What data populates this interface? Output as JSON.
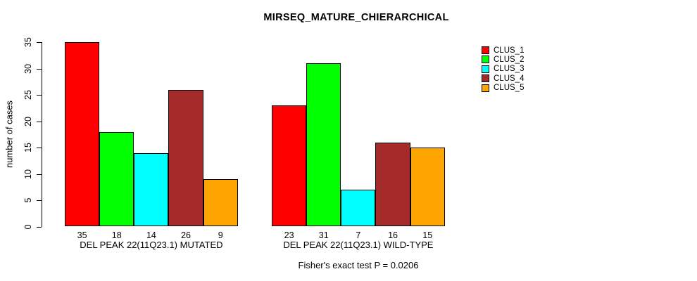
{
  "chart_data": {
    "type": "bar",
    "title": "MIRSEQ_MATURE_CHIERARCHICAL",
    "ylabel": "number of cases",
    "xlabel": "",
    "ylim": [
      0,
      35
    ],
    "yticks": [
      0,
      5,
      10,
      15,
      20,
      25,
      30,
      35
    ],
    "grid": false,
    "legend_position": "right",
    "clusters": [
      "CLUS_1",
      "CLUS_2",
      "CLUS_3",
      "CLUS_4",
      "CLUS_5"
    ],
    "colors": [
      "#FF0000",
      "#00FF00",
      "#00FFFF",
      "#A52A2A",
      "#FFA500"
    ],
    "groups": [
      {
        "label": "DEL PEAK 22(11Q23.1) MUTATED",
        "values": [
          35,
          18,
          14,
          26,
          9
        ]
      },
      {
        "label": "DEL PEAK 22(11Q23.1) WILD-TYPE",
        "values": [
          23,
          31,
          7,
          16,
          15
        ]
      }
    ],
    "annotation": "Fisher's exact test P = 0.0206"
  }
}
